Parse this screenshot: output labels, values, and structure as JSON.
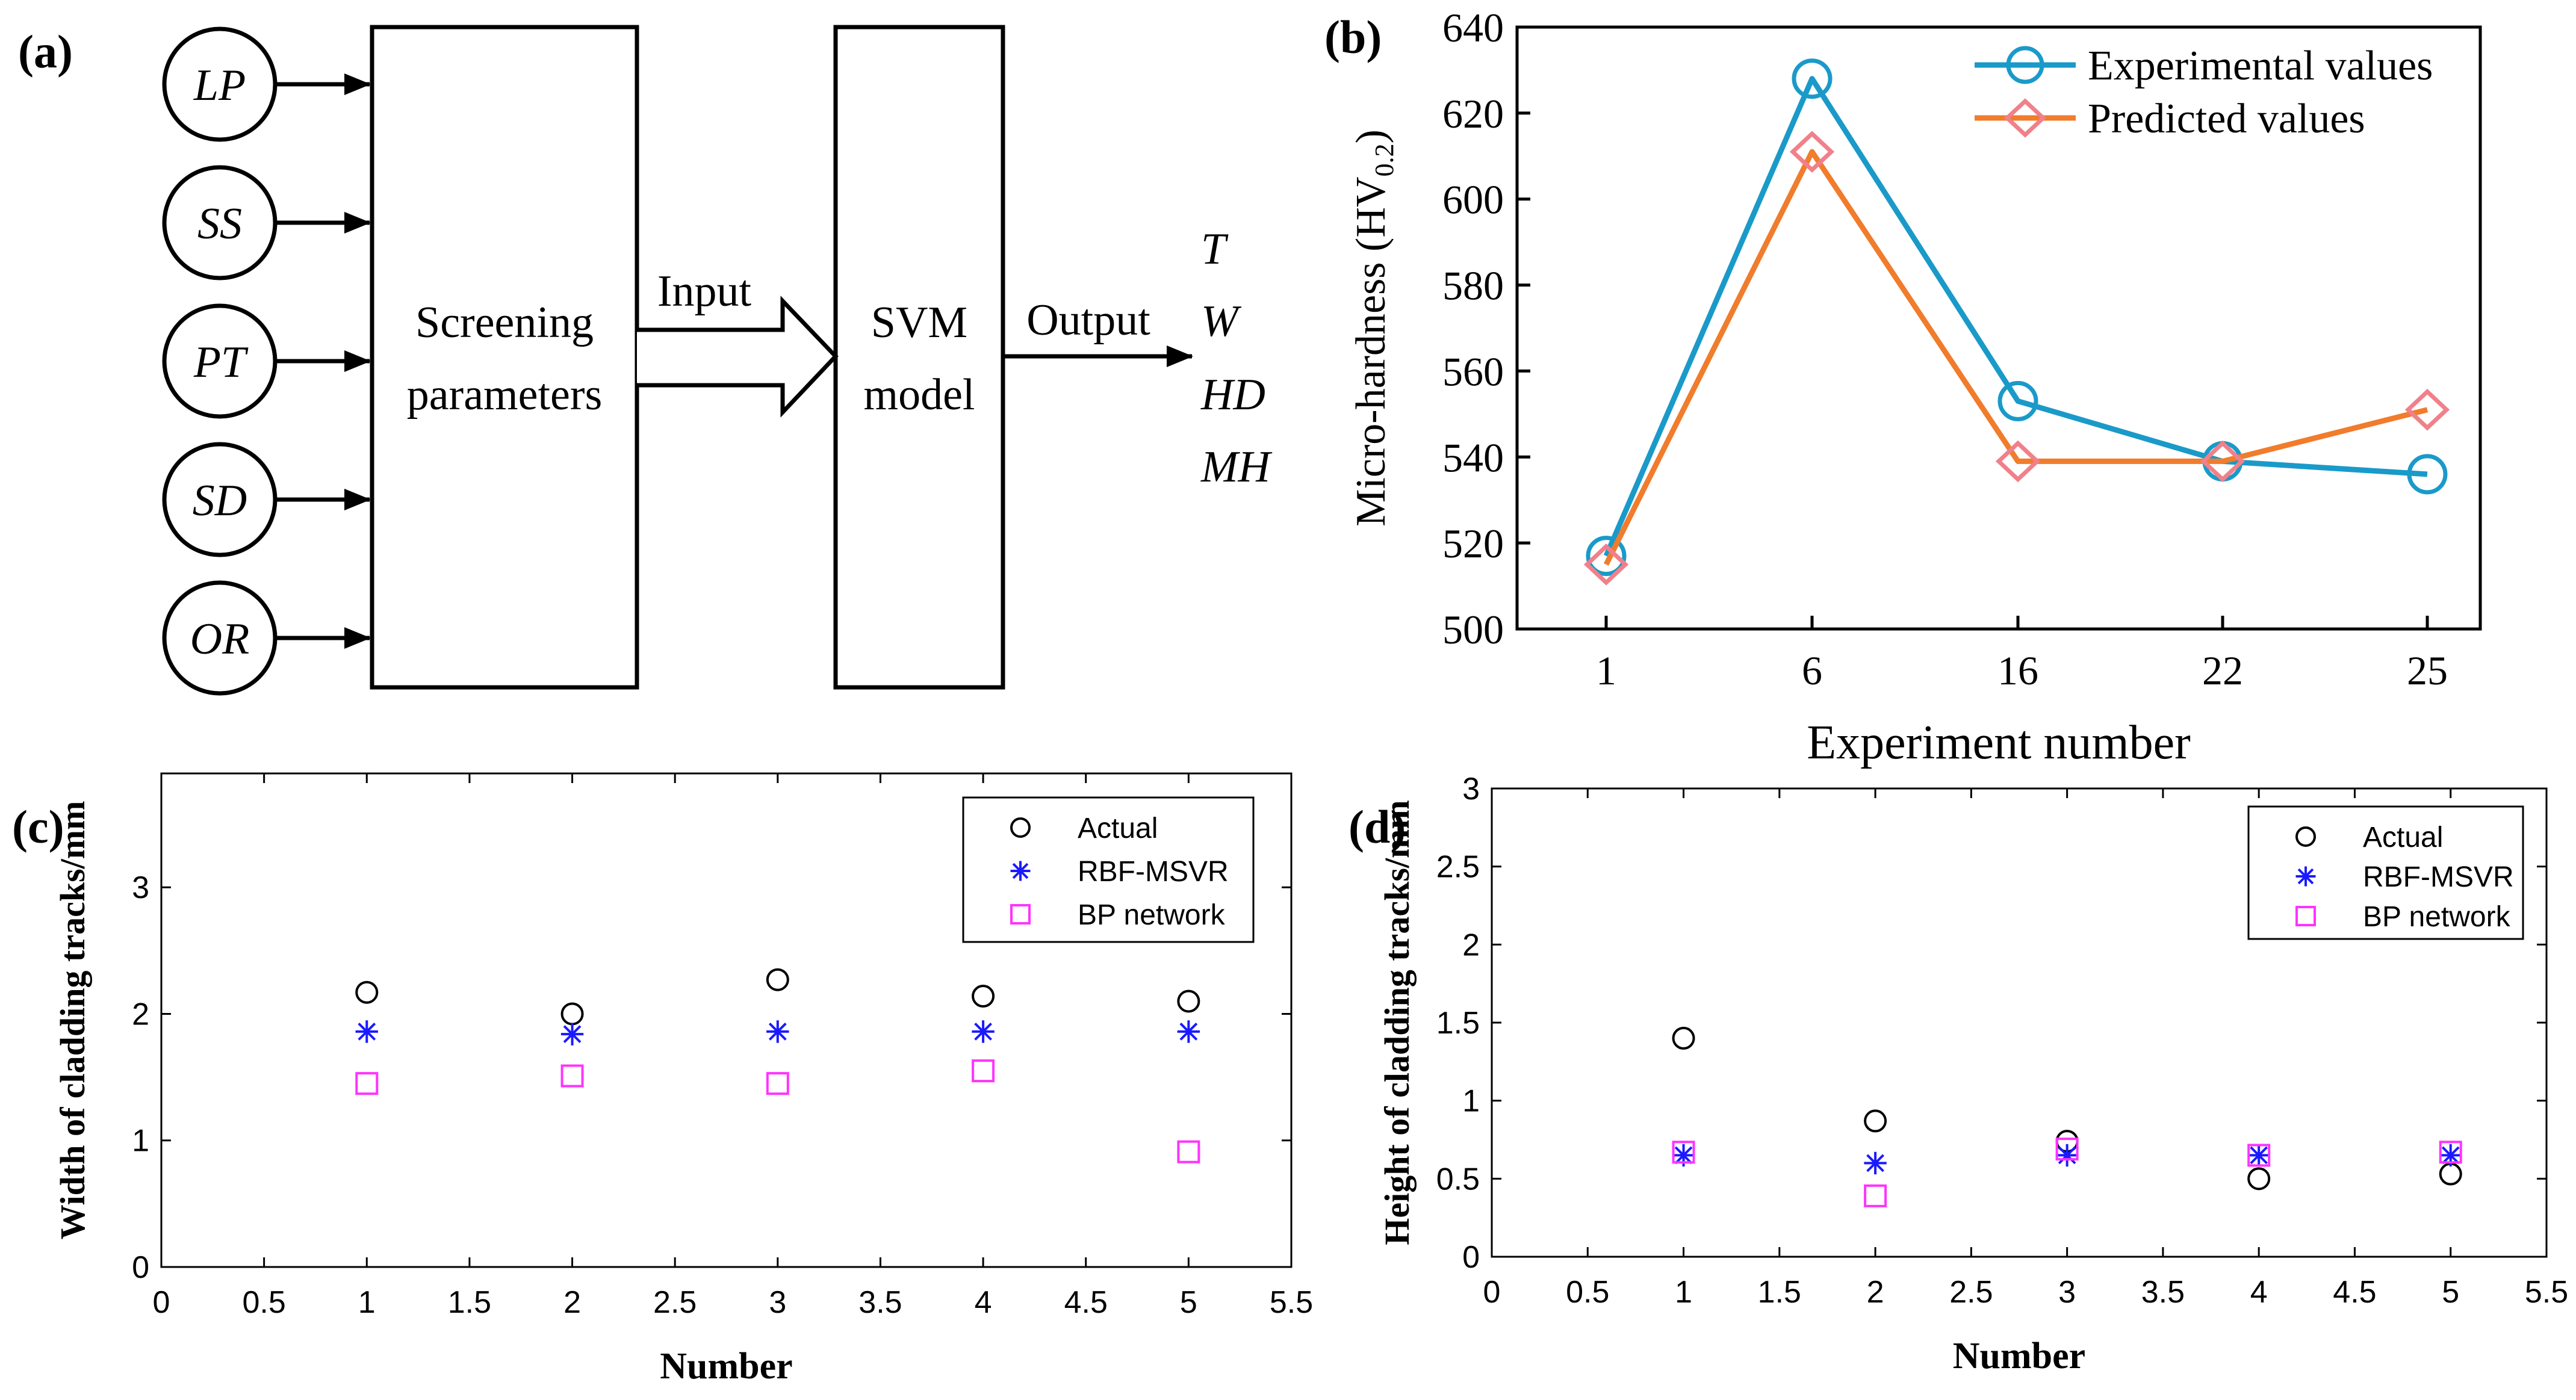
{
  "panels": {
    "a": {
      "label": "(a)",
      "inputs": [
        "LP",
        "SS",
        "PT",
        "SD",
        "OR"
      ],
      "box1_lines": [
        "Screening",
        "parameters"
      ],
      "input_label": "Input",
      "box2_lines": [
        "SVM",
        "model"
      ],
      "output_label": "Output",
      "outputs": [
        "T",
        "W",
        "HD",
        "MH"
      ]
    },
    "b": {
      "label": "(b)"
    },
    "c": {
      "label": "(c)"
    },
    "d": {
      "label": "(d)"
    }
  },
  "chart_data": [
    {
      "id": "b",
      "type": "line",
      "title": "",
      "xlabel": "Experiment number",
      "ylabel_main": "Micro-hardness (HV",
      "ylabel_sub": "0.2",
      "ylabel_close": ")",
      "categories": [
        "1",
        "6",
        "16",
        "22",
        "25"
      ],
      "ylim": [
        500,
        640
      ],
      "yticks": [
        500,
        520,
        540,
        560,
        580,
        600,
        620,
        640
      ],
      "legend_position": "top-right",
      "series": [
        {
          "name": "Experimental values",
          "color": "#1a9ac9",
          "marker": "circle",
          "values": [
            517,
            628,
            553,
            539,
            536
          ]
        },
        {
          "name": "Predicted values",
          "color": "#f07c2c",
          "marker_color": "#f0808a",
          "marker": "diamond",
          "values": [
            515,
            611,
            539,
            539,
            551
          ]
        }
      ]
    },
    {
      "id": "c",
      "type": "scatter",
      "title": "",
      "xlabel": "Number",
      "ylabel": "Width of cladding tracks/mm",
      "xlim": [
        0,
        5.5
      ],
      "ylim": [
        0,
        3.9
      ],
      "xticks": [
        "0",
        "0.5",
        "1",
        "1.5",
        "2",
        "2.5",
        "3",
        "3.5",
        "4",
        "4.5",
        "5",
        "5.5"
      ],
      "yticks": [
        "0",
        "1",
        "2",
        "3"
      ],
      "legend_position": "top-right",
      "x": [
        1,
        2,
        3,
        4,
        5
      ],
      "series": [
        {
          "name": "Actual",
          "marker": "circle",
          "color": "#000000",
          "values": [
            2.17,
            2.0,
            2.27,
            2.14,
            2.1
          ]
        },
        {
          "name": "RBF-MSVR",
          "marker": "star",
          "color": "#1a1aff",
          "values": [
            1.86,
            1.84,
            1.86,
            1.86,
            1.86
          ]
        },
        {
          "name": "BP network",
          "marker": "square",
          "color": "#ff33ff",
          "values": [
            1.45,
            1.51,
            1.45,
            1.55,
            0.91
          ]
        }
      ]
    },
    {
      "id": "d",
      "type": "scatter",
      "title": "",
      "xlabel": "Number",
      "ylabel": "Height of cladding tracks/mm",
      "xlim": [
        0,
        5.5
      ],
      "ylim": [
        0,
        3
      ],
      "xticks": [
        "0",
        "0.5",
        "1",
        "1.5",
        "2",
        "2.5",
        "3",
        "3.5",
        "4",
        "4.5",
        "5",
        "5.5"
      ],
      "yticks": [
        "0",
        "0.5",
        "1",
        "1.5",
        "2",
        "2.5",
        "3"
      ],
      "legend_position": "top-right",
      "x": [
        1,
        2,
        3,
        4,
        5
      ],
      "series": [
        {
          "name": "Actual",
          "marker": "circle",
          "color": "#000000",
          "values": [
            1.4,
            0.87,
            0.74,
            0.5,
            0.53
          ]
        },
        {
          "name": "RBF-MSVR",
          "marker": "star",
          "color": "#1a1aff",
          "values": [
            0.65,
            0.6,
            0.65,
            0.65,
            0.65
          ]
        },
        {
          "name": "BP network",
          "marker": "square",
          "color": "#ff33ff",
          "values": [
            0.67,
            0.39,
            0.69,
            0.65,
            0.67
          ]
        }
      ]
    }
  ]
}
